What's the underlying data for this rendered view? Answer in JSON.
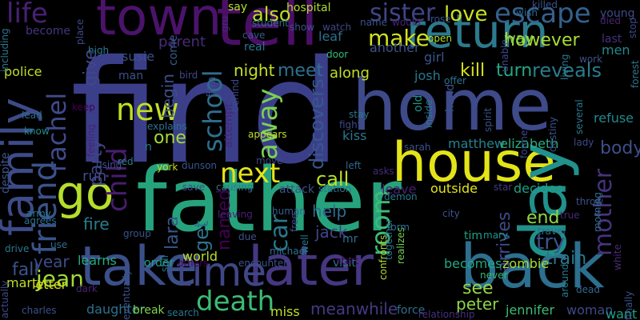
{
  "background": "#000000",
  "palette": [
    "#440154",
    "#472d7b",
    "#3b528b",
    "#2c728e",
    "#21918c",
    "#28ae80",
    "#5ec962",
    "#addc30",
    "#fde725"
  ],
  "words": [
    {
      "text": "find",
      "color": "#3b3f8a"
    },
    {
      "text": "home",
      "color": "#3e4a89"
    },
    {
      "text": "father",
      "color": "#26a37d"
    },
    {
      "text": "take",
      "color": "#3b4f89"
    },
    {
      "text": "later",
      "color": "#453781"
    },
    {
      "text": "back",
      "color": "#2d6f8e"
    },
    {
      "text": "house",
      "color": "#e3e418"
    },
    {
      "text": "return",
      "color": "#2c7a8e"
    },
    {
      "text": "tell",
      "color": "#4b0f66"
    },
    {
      "text": "town",
      "color": "#4b136b"
    },
    {
      "text": "family",
      "color": "#3d4b88"
    },
    {
      "text": "day",
      "color": "#21918c"
    },
    {
      "text": "go",
      "color": "#b5de2b"
    },
    {
      "text": "time",
      "color": "#3f4787"
    },
    {
      "text": "death",
      "color": "#3dbc73"
    },
    {
      "text": "new",
      "color": "#c2df23"
    },
    {
      "text": "next",
      "color": "#e5e419"
    },
    {
      "text": "friend",
      "color": "#3a538b"
    },
    {
      "text": "school",
      "color": "#2e6e8e"
    },
    {
      "text": "rachel",
      "color": "#3f4a8a"
    },
    {
      "text": "child",
      "color": "#481d6f"
    },
    {
      "text": "life",
      "color": "#482173"
    },
    {
      "text": "sister",
      "color": "#414487"
    },
    {
      "text": "love",
      "color": "#c8e020"
    },
    {
      "text": "escape",
      "color": "#34618d"
    },
    {
      "text": "make",
      "color": "#d2e21b"
    },
    {
      "text": "also",
      "color": "#bddf26"
    },
    {
      "text": "meet",
      "color": "#2d718e"
    },
    {
      "text": "kill",
      "color": "#d9e219"
    },
    {
      "text": "turn",
      "color": "#22a785"
    },
    {
      "text": "reveals",
      "color": "#297b8e"
    },
    {
      "text": "room",
      "color": "#3fbc73"
    },
    {
      "text": "try",
      "color": "#3b528b"
    },
    {
      "text": "mother",
      "color": "#46337e"
    },
    {
      "text": "car",
      "color": "#2a788e"
    },
    {
      "text": "away",
      "color": "#7ad151"
    },
    {
      "text": "call",
      "color": "#bddf26"
    },
    {
      "text": "get",
      "color": "#2c728e"
    },
    {
      "text": "jean",
      "color": "#a0da39"
    },
    {
      "text": "fall",
      "color": "#3a548c"
    },
    {
      "text": "train",
      "color": "#2a778e"
    },
    {
      "text": "end",
      "color": "#90d743"
    },
    {
      "text": "body",
      "color": "#3c4f8a"
    },
    {
      "text": "see",
      "color": "#93d741"
    },
    {
      "text": "peter",
      "color": "#8ed645"
    },
    {
      "text": "meanwhile",
      "color": "#443a83"
    },
    {
      "text": "year",
      "color": "#3e4c8a"
    },
    {
      "text": "help",
      "color": "#2f6b8e"
    },
    {
      "text": "jack",
      "color": "#404588"
    },
    {
      "text": "discovers",
      "color": "#37598c"
    },
    {
      "text": "party",
      "color": "#414487"
    },
    {
      "text": "give",
      "color": "#404688"
    },
    {
      "text": "however",
      "color": "#a8db34"
    },
    {
      "text": "fire",
      "color": "#287d8e"
    },
    {
      "text": "arrives",
      "color": "#3e4989"
    },
    {
      "text": "one",
      "color": "#a2da37"
    },
    {
      "text": "begin",
      "color": "#3c4f8a"
    },
    {
      "text": "named",
      "color": "#440154"
    },
    {
      "text": "lara",
      "color": "#38588c"
    },
    {
      "text": "night",
      "color": "#c5e021"
    },
    {
      "text": "along",
      "color": "#c0df25"
    },
    {
      "text": "matthew",
      "color": "#26828e"
    },
    {
      "text": "elizabeth",
      "color": "#29af7f"
    },
    {
      "text": "jennifer",
      "color": "#3dbc74"
    },
    {
      "text": "woman",
      "color": "#3e4989"
    },
    {
      "text": "becomes",
      "color": "#22a884"
    },
    {
      "text": "zombie",
      "color": "#a8db34"
    },
    {
      "text": "police",
      "color": "#c2df23"
    },
    {
      "text": "marty",
      "color": "#bddf26"
    },
    {
      "text": "letter",
      "color": "#d8e219"
    },
    {
      "text": "daughter",
      "color": "#2c718e"
    },
    {
      "text": "learns",
      "color": "#27ad81"
    },
    {
      "text": "world",
      "color": "#b8de29"
    },
    {
      "text": "kiss",
      "color": "#2a768e"
    },
    {
      "text": "outside",
      "color": "#e2e418"
    },
    {
      "text": "leave",
      "color": "#482071"
    },
    {
      "text": "decides",
      "color": "#1fa088"
    },
    {
      "text": "refuse",
      "color": "#23898e"
    },
    {
      "text": "men",
      "color": "#23888e"
    },
    {
      "text": "want",
      "color": "#1f9e89"
    },
    {
      "text": "miss",
      "color": "#bddf26"
    },
    {
      "text": "break",
      "color": "#7fd34e"
    },
    {
      "text": "force",
      "color": "#2e6f8e"
    },
    {
      "text": "visit",
      "color": "#2b758e"
    },
    {
      "text": "order",
      "color": "#1fa287"
    },
    {
      "text": "run",
      "color": "#3e4c8a"
    },
    {
      "text": "film",
      "color": "#3b518b"
    },
    {
      "text": "parent",
      "color": "#472c7a"
    },
    {
      "text": "susie",
      "color": "#3c508b"
    },
    {
      "text": "josh",
      "color": "#2a768e"
    },
    {
      "text": "girl",
      "color": "#3a548c"
    },
    {
      "text": "way",
      "color": "#7fd34e"
    },
    {
      "text": "hospital",
      "color": "#b2dd2d"
    },
    {
      "text": "leaf",
      "color": "#2c718e"
    },
    {
      "text": "another",
      "color": "#3a538b"
    },
    {
      "text": "hand",
      "color": "#3c508b"
    },
    {
      "text": "old",
      "color": "#1f948c"
    },
    {
      "text": "realizes",
      "color": "#75d054"
    },
    {
      "text": "attack",
      "color": "#3b518b"
    },
    {
      "text": "attempt",
      "color": "#482576"
    },
    {
      "text": "man",
      "color": "#3a538b"
    },
    {
      "text": "come",
      "color": "#365c8d"
    },
    {
      "text": "say",
      "color": "#b8de29"
    },
    {
      "text": "young",
      "color": "#3e4989"
    },
    {
      "text": "last",
      "color": "#46307e"
    },
    {
      "text": "open",
      "color": "#b8de29"
    },
    {
      "text": "become",
      "color": "#463480"
    },
    {
      "text": "cave",
      "color": "#38588c"
    },
    {
      "text": "real",
      "color": "#2a768e"
    },
    {
      "text": "door",
      "color": "#38b977"
    },
    {
      "text": "bird",
      "color": "#3f4788"
    },
    {
      "text": "red",
      "color": "#287d8e"
    },
    {
      "text": "york",
      "color": "#c2df23"
    },
    {
      "text": "dunson",
      "color": "#3a548c"
    },
    {
      "text": "move",
      "color": "#3f4788"
    },
    {
      "text": "appears",
      "color": "#bddf26"
    },
    {
      "text": "left",
      "color": "#31688e"
    },
    {
      "text": "asks",
      "color": "#472a7a"
    },
    {
      "text": "station",
      "color": "#2c718e"
    },
    {
      "text": "save",
      "color": "#3e4a89"
    },
    {
      "text": "causing",
      "color": "#2a788e"
    },
    {
      "text": "human",
      "color": "#35608d"
    },
    {
      "text": "free",
      "color": "#3e4989"
    },
    {
      "text": "leaving",
      "color": "#482173"
    },
    {
      "text": "due",
      "color": "#3b528b"
    },
    {
      "text": "michael",
      "color": "#2c718e"
    },
    {
      "text": "encounter",
      "color": "#3b528b"
    },
    {
      "text": "others",
      "color": "#440154"
    },
    {
      "text": "start",
      "color": "#440154"
    },
    {
      "text": "confronts",
      "color": "#b2dd2d"
    },
    {
      "text": "tim",
      "color": "#1fa188"
    },
    {
      "text": "mary",
      "color": "#1f958b"
    },
    {
      "text": "mr",
      "color": "#2d718e"
    },
    {
      "text": "city",
      "color": "#3b528b"
    },
    {
      "text": "star",
      "color": "#443983"
    },
    {
      "text": "travel",
      "color": "#2e6d8e"
    },
    {
      "text": "true",
      "color": "#482979"
    },
    {
      "text": "never",
      "color": "#38b977"
    },
    {
      "text": "around",
      "color": "#297b8e"
    },
    {
      "text": "dead",
      "color": "#31678e"
    },
    {
      "text": "relationship",
      "color": "#46307e"
    },
    {
      "text": "search",
      "color": "#2a768e"
    },
    {
      "text": "charles",
      "color": "#3b518b"
    },
    {
      "text": "dark",
      "color": "#482374"
    },
    {
      "text": "keep",
      "color": "#440154"
    },
    {
      "text": "lead",
      "color": "#2f6c8e"
    },
    {
      "text": "know",
      "color": "#228b8d"
    },
    {
      "text": "despite",
      "color": "#3b528b"
    },
    {
      "text": "army",
      "color": "#2a788e"
    },
    {
      "text": "agrees",
      "color": "#2c718e"
    },
    {
      "text": "use",
      "color": "#2e6d8e"
    },
    {
      "text": "drive",
      "color": "#2a788e"
    },
    {
      "text": "actually",
      "color": "#3e4989"
    },
    {
      "text": "including",
      "color": "#2a768e"
    },
    {
      "text": "place",
      "color": "#3e4989"
    },
    {
      "text": "high",
      "color": "#2a788e"
    },
    {
      "text": "gru",
      "color": "#482979"
    },
    {
      "text": "show",
      "color": "#3b528b"
    },
    {
      "text": "watch",
      "color": "#3f4788"
    },
    {
      "text": "name",
      "color": "#3b528b"
    },
    {
      "text": "student",
      "color": "#2d718e"
    },
    {
      "text": "would",
      "color": "#482374"
    },
    {
      "text": "rose",
      "color": "#3b528b"
    },
    {
      "text": "killed",
      "color": "#3b528b"
    },
    {
      "text": "died",
      "color": "#482374"
    },
    {
      "text": "wish",
      "color": "#31688e"
    },
    {
      "text": "stop",
      "color": "#3e4989"
    },
    {
      "text": "forest",
      "color": "#2a768e"
    },
    {
      "text": "work",
      "color": "#3b528b"
    },
    {
      "text": "living",
      "color": "#2a788e"
    },
    {
      "text": "unable",
      "color": "#3e4989"
    },
    {
      "text": "offer",
      "color": "#2c718e"
    },
    {
      "text": "inside",
      "color": "#2a788e"
    },
    {
      "text": "spirit",
      "color": "#3b528b"
    },
    {
      "text": "several",
      "color": "#2a768e"
    },
    {
      "text": "former",
      "color": "#3e4989"
    },
    {
      "text": "destiny",
      "color": "#3b528b"
    },
    {
      "text": "lady",
      "color": "#3e4989"
    },
    {
      "text": "throw",
      "color": "#3b528b"
    },
    {
      "text": "morning",
      "color": "#2d718e"
    },
    {
      "text": "finally",
      "color": "#3b528b"
    },
    {
      "text": "white",
      "color": "#482979"
    },
    {
      "text": "stay",
      "color": "#2a768e"
    },
    {
      "text": "fight",
      "color": "#3e4989"
    },
    {
      "text": "sarah",
      "color": "#3b528b"
    },
    {
      "text": "explains",
      "color": "#2c718e"
    },
    {
      "text": "behind",
      "color": "#3e4989"
    },
    {
      "text": "feeling",
      "color": "#482374"
    },
    {
      "text": "using",
      "color": "#3b528b"
    },
    {
      "text": "demon",
      "color": "#2a788e"
    },
    {
      "text": "form",
      "color": "#2d718e"
    },
    {
      "text": "together",
      "color": "#2a788e"
    },
    {
      "text": "group",
      "color": "#3b528b"
    },
    {
      "text": "still",
      "color": "#2c718e"
    },
    {
      "text": "well",
      "color": "#2a768e"
    },
    {
      "text": "eventually",
      "color": "#3b528b"
    },
    {
      "text": "n",
      "color": "#2a788e"
    }
  ]
}
